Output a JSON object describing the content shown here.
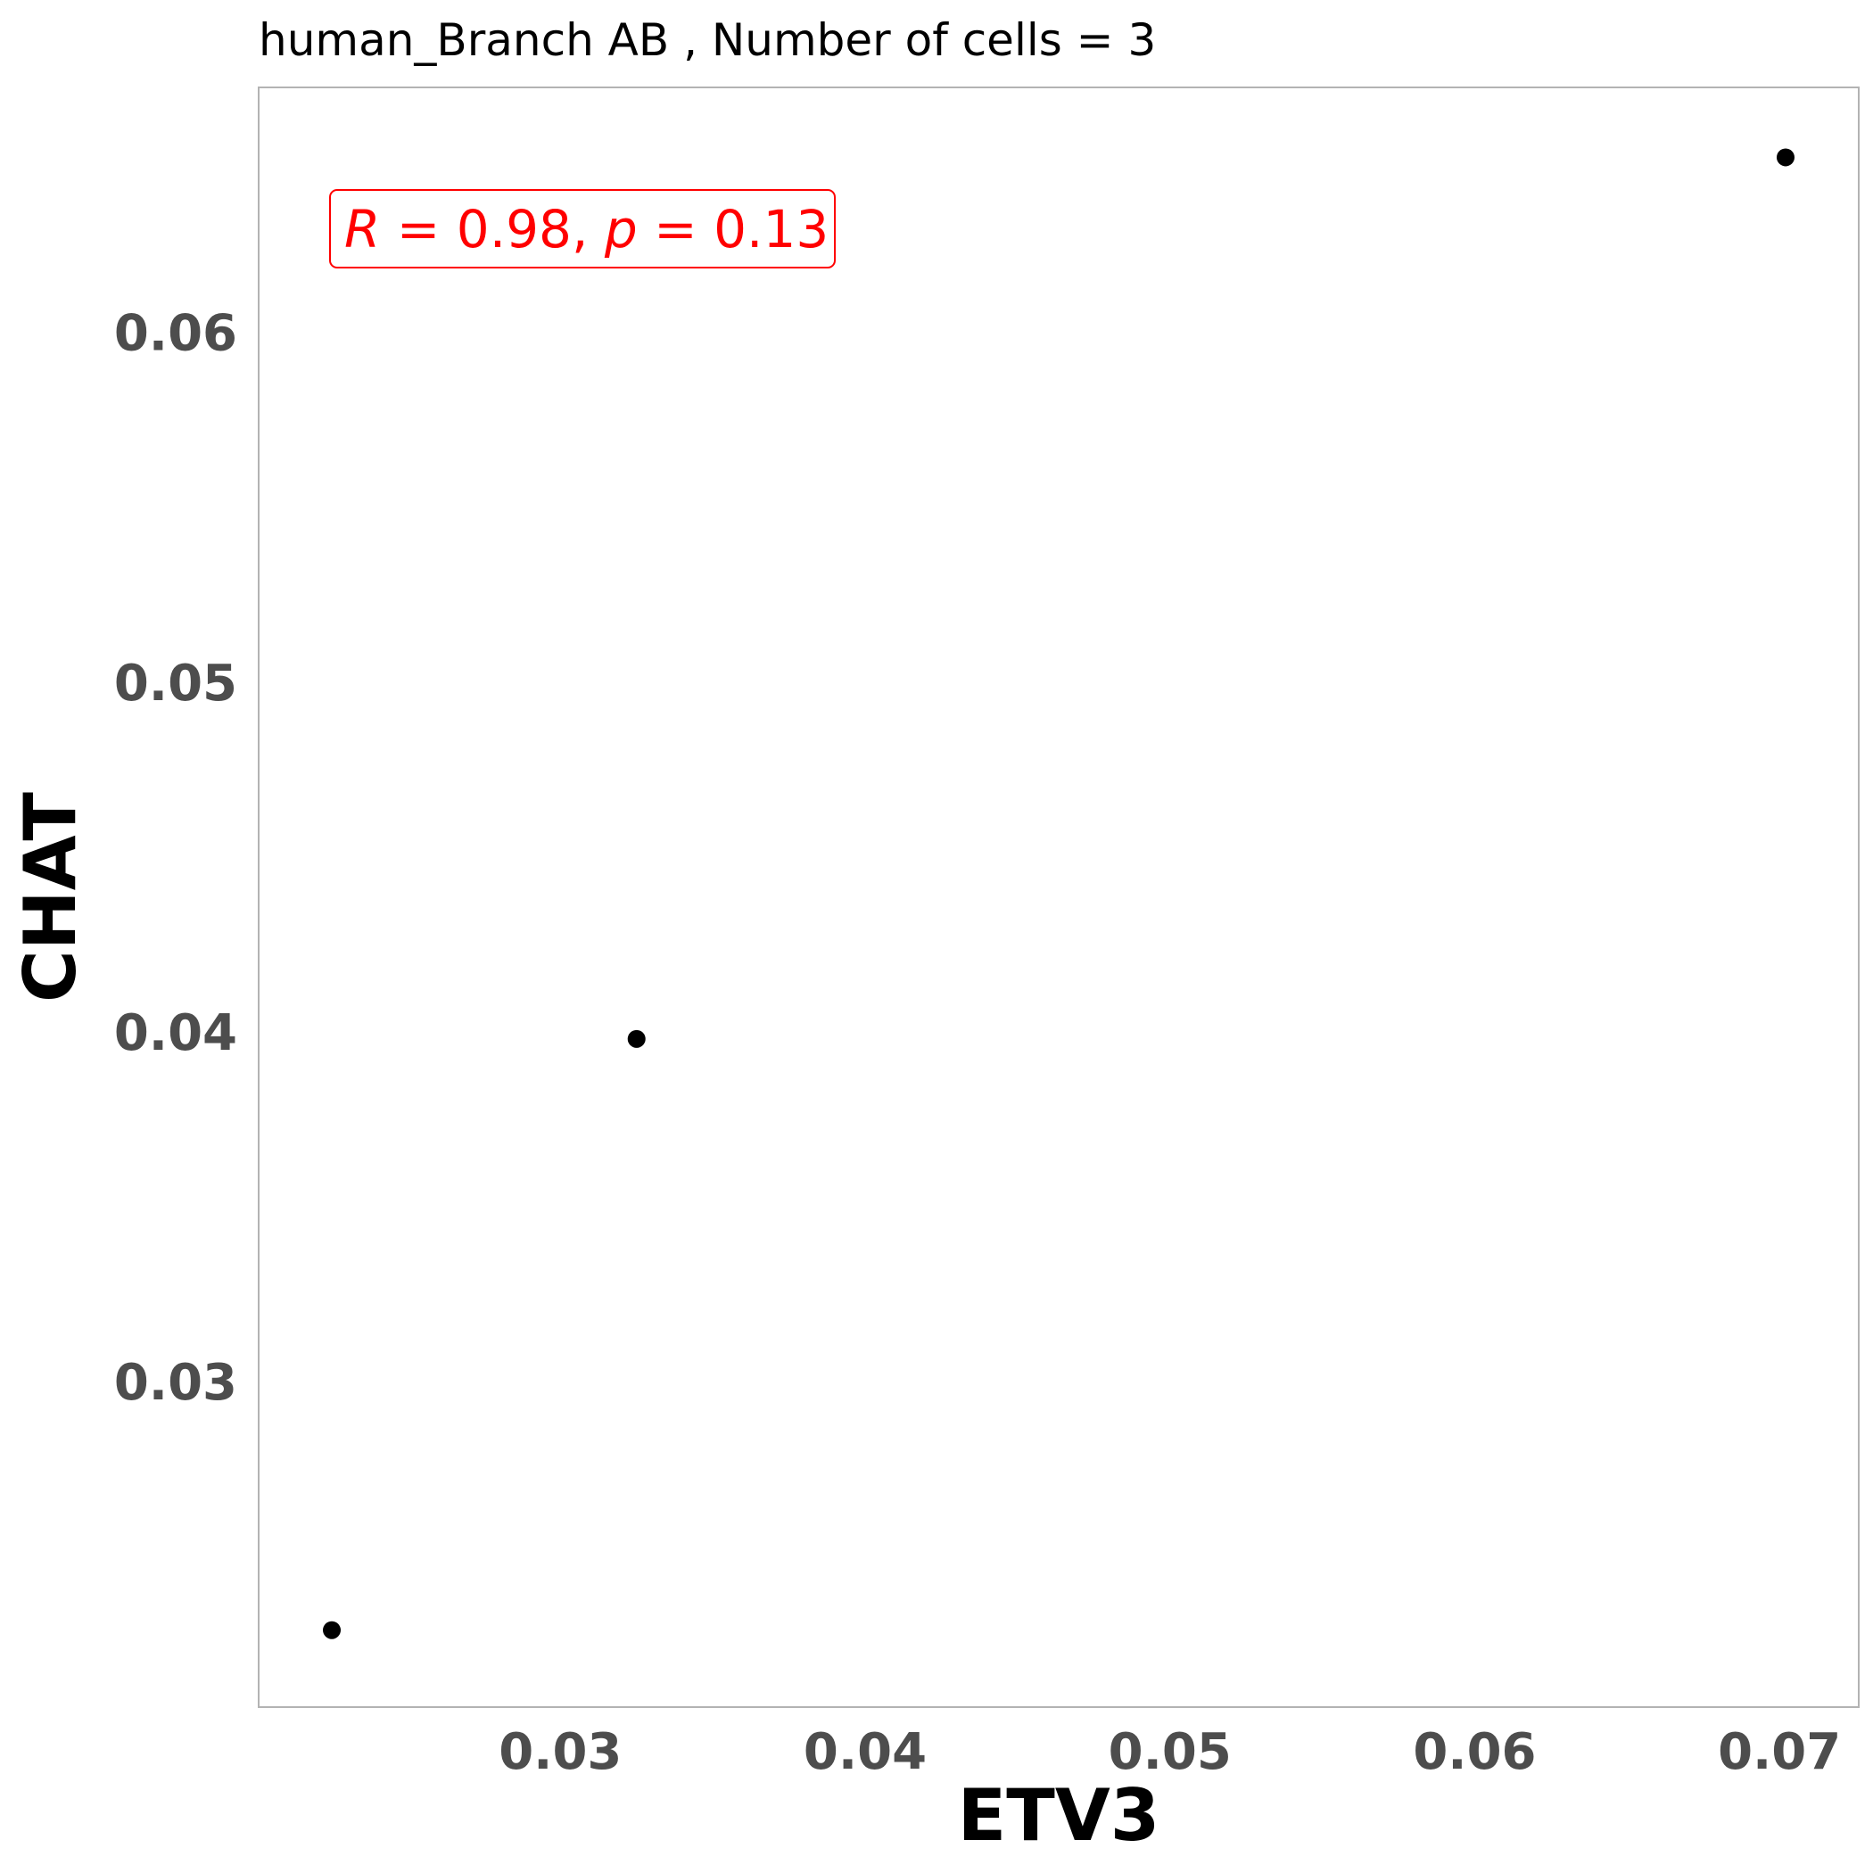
{
  "chart_data": {
    "type": "scatter",
    "title": "human_Branch AB , Number of cells =  3",
    "xlabel": "ETV3",
    "ylabel": "CHAT",
    "xlim": [
      0.0201,
      0.0726
    ],
    "ylim": [
      0.0207,
      0.067
    ],
    "x_ticks": [
      0.03,
      0.04,
      0.05,
      0.06,
      0.07
    ],
    "x_tick_labels": [
      "0.03",
      "0.04",
      "0.05",
      "0.06",
      "0.07"
    ],
    "y_ticks": [
      0.03,
      0.04,
      0.05,
      0.06
    ],
    "y_tick_labels": [
      "0.03",
      "0.04",
      "0.05",
      "0.06"
    ],
    "grid": false,
    "points": [
      {
        "x": 0.0225,
        "y": 0.0229
      },
      {
        "x": 0.0325,
        "y": 0.0398
      },
      {
        "x": 0.0702,
        "y": 0.065
      }
    ],
    "annotation": {
      "r_symbol": "R",
      "r_value": "0.98",
      "p_symbol": "p",
      "p_value": "0.13"
    },
    "colors": {
      "point": "#000000",
      "annotation": "#ff0000",
      "panel_border": "#b3b3b3",
      "tick_label": "#4d4d4d"
    }
  }
}
